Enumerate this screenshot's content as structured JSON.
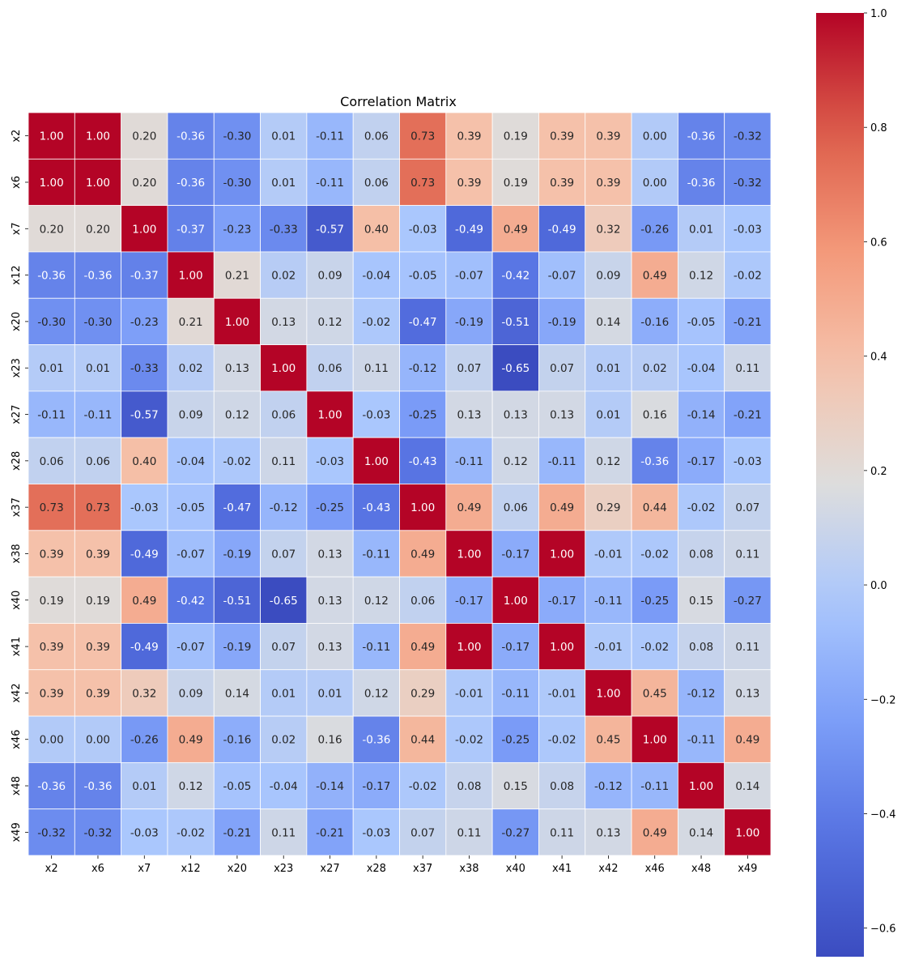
{
  "chart_data": {
    "type": "heatmap",
    "title": "Correlation Matrix",
    "colormap": "coolwarm",
    "annotated": true,
    "annotation_format": "0.00",
    "grid_lines": "white",
    "labels": [
      "x2",
      "x6",
      "x7",
      "x12",
      "x20",
      "x23",
      "x27",
      "x28",
      "x37",
      "x38",
      "x40",
      "x41",
      "x42",
      "x46",
      "x48",
      "x49"
    ],
    "matrix": [
      [
        1.0,
        1.0,
        0.2,
        -0.36,
        -0.3,
        0.01,
        -0.11,
        0.06,
        0.73,
        0.39,
        0.19,
        0.39,
        0.39,
        0.0,
        -0.36,
        -0.32
      ],
      [
        1.0,
        1.0,
        0.2,
        -0.36,
        -0.3,
        0.01,
        -0.11,
        0.06,
        0.73,
        0.39,
        0.19,
        0.39,
        0.39,
        0.0,
        -0.36,
        -0.32
      ],
      [
        0.2,
        0.2,
        1.0,
        -0.37,
        -0.23,
        -0.33,
        -0.57,
        0.4,
        -0.03,
        -0.49,
        0.49,
        -0.49,
        0.32,
        -0.26,
        0.01,
        -0.03
      ],
      [
        -0.36,
        -0.36,
        -0.37,
        1.0,
        0.21,
        0.02,
        0.09,
        -0.04,
        -0.05,
        -0.07,
        -0.42,
        -0.07,
        0.09,
        0.49,
        0.12,
        -0.02
      ],
      [
        -0.3,
        -0.3,
        -0.23,
        0.21,
        1.0,
        0.13,
        0.12,
        -0.02,
        -0.47,
        -0.19,
        -0.51,
        -0.19,
        0.14,
        -0.16,
        -0.05,
        -0.21
      ],
      [
        0.01,
        0.01,
        -0.33,
        0.02,
        0.13,
        1.0,
        0.06,
        0.11,
        -0.12,
        0.07,
        -0.65,
        0.07,
        0.01,
        0.02,
        -0.04,
        0.11
      ],
      [
        -0.11,
        -0.11,
        -0.57,
        0.09,
        0.12,
        0.06,
        1.0,
        -0.03,
        -0.25,
        0.13,
        0.13,
        0.13,
        0.01,
        0.16,
        -0.14,
        -0.21
      ],
      [
        0.06,
        0.06,
        0.4,
        -0.04,
        -0.02,
        0.11,
        -0.03,
        1.0,
        -0.43,
        -0.11,
        0.12,
        -0.11,
        0.12,
        -0.36,
        -0.17,
        -0.03
      ],
      [
        0.73,
        0.73,
        -0.03,
        -0.05,
        -0.47,
        -0.12,
        -0.25,
        -0.43,
        1.0,
        0.49,
        0.06,
        0.49,
        0.29,
        0.44,
        -0.02,
        0.07
      ],
      [
        0.39,
        0.39,
        -0.49,
        -0.07,
        -0.19,
        0.07,
        0.13,
        -0.11,
        0.49,
        1.0,
        -0.17,
        1.0,
        -0.01,
        -0.02,
        0.08,
        0.11
      ],
      [
        0.19,
        0.19,
        0.49,
        -0.42,
        -0.51,
        -0.65,
        0.13,
        0.12,
        0.06,
        -0.17,
        1.0,
        -0.17,
        -0.11,
        -0.25,
        0.15,
        -0.27
      ],
      [
        0.39,
        0.39,
        -0.49,
        -0.07,
        -0.19,
        0.07,
        0.13,
        -0.11,
        0.49,
        1.0,
        -0.17,
        1.0,
        -0.01,
        -0.02,
        0.08,
        0.11
      ],
      [
        0.39,
        0.39,
        0.32,
        0.09,
        0.14,
        0.01,
        0.01,
        0.12,
        0.29,
        -0.01,
        -0.11,
        -0.01,
        1.0,
        0.45,
        -0.12,
        0.13
      ],
      [
        0.0,
        0.0,
        -0.26,
        0.49,
        -0.16,
        0.02,
        0.16,
        -0.36,
        0.44,
        -0.02,
        -0.25,
        -0.02,
        0.45,
        1.0,
        -0.11,
        0.49
      ],
      [
        -0.36,
        -0.36,
        0.01,
        0.12,
        -0.05,
        -0.04,
        -0.14,
        -0.17,
        -0.02,
        0.08,
        0.15,
        0.08,
        -0.12,
        -0.11,
        1.0,
        0.14
      ],
      [
        -0.32,
        -0.32,
        -0.03,
        -0.02,
        -0.21,
        0.11,
        -0.21,
        -0.03,
        0.07,
        0.11,
        -0.27,
        0.11,
        0.13,
        0.49,
        0.14,
        1.0
      ]
    ],
    "colorbar": {
      "range": [
        -0.65,
        1.0
      ],
      "ticks": [
        1.0,
        0.8,
        0.6,
        0.4,
        0.2,
        0.0,
        -0.2,
        -0.4,
        -0.6
      ],
      "tick_labels": [
        "1.0",
        "0.8",
        "0.6",
        "0.4",
        "0.2",
        "0.0",
        "−0.2",
        "−0.4",
        "−0.6"
      ]
    }
  }
}
